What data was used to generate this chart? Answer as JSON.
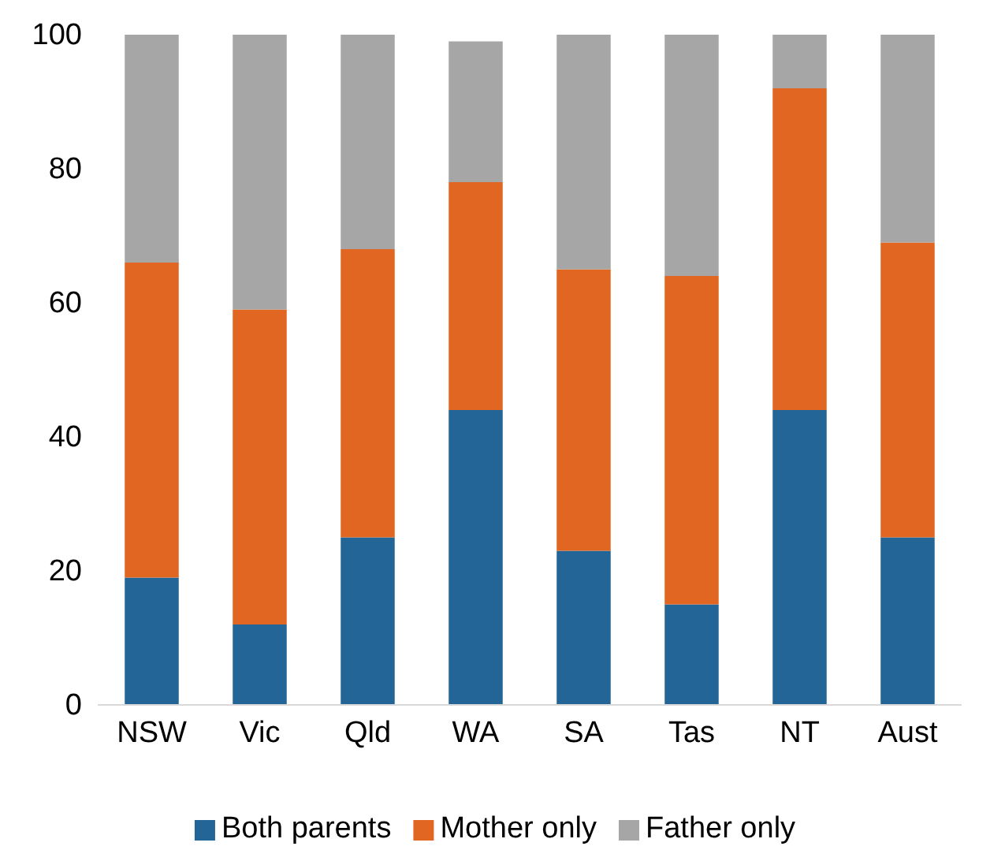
{
  "chart_data": {
    "type": "bar",
    "stacked": true,
    "categories": [
      "NSW",
      "Vic",
      "Qld",
      "WA",
      "SA",
      "Tas",
      "NT",
      "Aust"
    ],
    "series": [
      {
        "name": "Both parents",
        "color": "#246597",
        "values": [
          19,
          12,
          25,
          44,
          23,
          15,
          44,
          25
        ]
      },
      {
        "name": "Mother only",
        "color": "#e06621",
        "values": [
          47,
          47,
          43,
          34,
          42,
          49,
          48,
          44
        ]
      },
      {
        "name": "Father only",
        "color": "#a6a6a6",
        "values": [
          34,
          41,
          32,
          21,
          35,
          36,
          8,
          31
        ]
      }
    ],
    "ylim": [
      0,
      100
    ],
    "yticks": [
      0,
      20,
      40,
      60,
      80,
      100
    ],
    "grid": false,
    "legend": "bottom"
  }
}
